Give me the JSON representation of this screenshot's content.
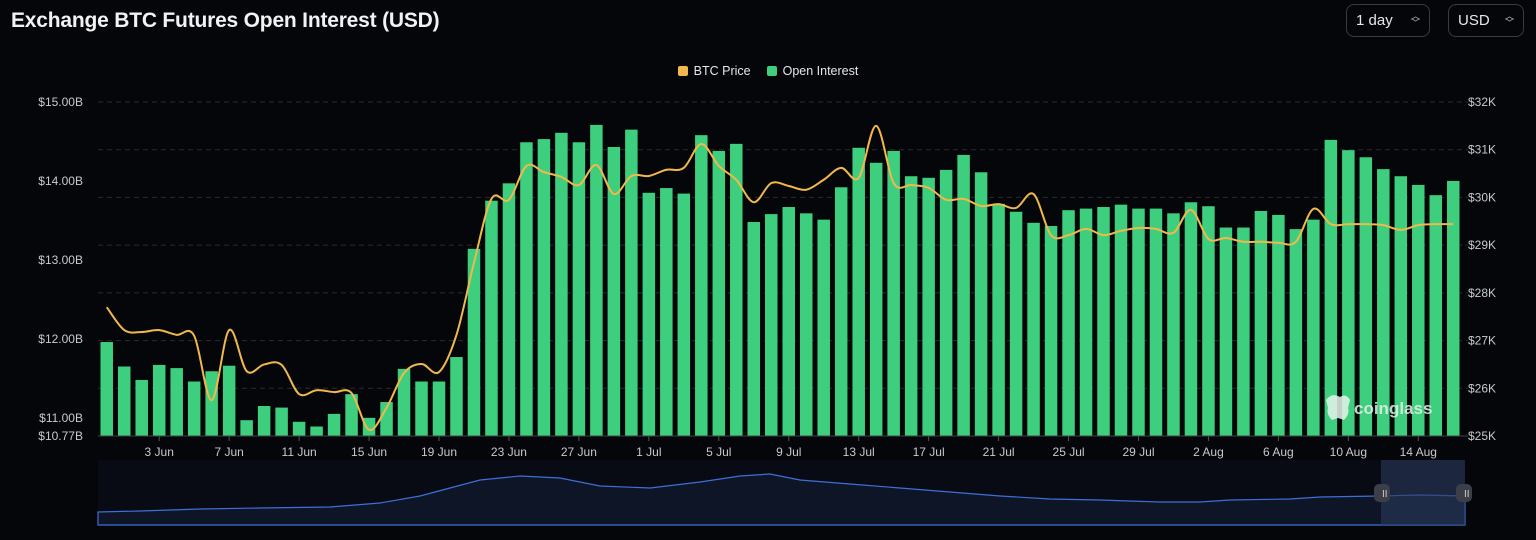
{
  "header": {
    "title": "Exchange BTC Futures Open Interest (USD)",
    "interval": "1 day",
    "currency": "USD"
  },
  "colors": {
    "bar": "#3ecf7e",
    "line": "#f2b84b",
    "background": "#05060a",
    "navigator_line": "#3d6fd8"
  },
  "watermark": "coinglass",
  "chart_data": {
    "type": "bar+line",
    "title": "Exchange BTC Futures Open Interest (USD)",
    "legend": {
      "position": "top-center",
      "entries": [
        "BTC Price",
        "Open Interest"
      ]
    },
    "x_tick_labels": [
      "3 Jun",
      "7 Jun",
      "11 Jun",
      "15 Jun",
      "19 Jun",
      "23 Jun",
      "27 Jun",
      "1 Jul",
      "5 Jul",
      "9 Jul",
      "13 Jul",
      "17 Jul",
      "21 Jul",
      "25 Jul",
      "29 Jul",
      "2 Aug",
      "6 Aug",
      "10 Aug",
      "14 Aug"
    ],
    "x_start": "31 May",
    "x_end": "16 Aug",
    "y_left": {
      "label": "Open Interest",
      "min": 10.77,
      "max": 15.0,
      "ticks": [
        "$15.00B",
        "$14.00B",
        "$13.00B",
        "$12.00B",
        "$11.00B",
        "$10.77B"
      ],
      "tick_values": [
        15,
        14,
        13,
        12,
        11,
        10.77
      ]
    },
    "y_right": {
      "label": "BTC Price",
      "min": 25000,
      "max": 32000,
      "ticks": [
        "$32K",
        "$31K",
        "$30K",
        "$29K",
        "$28K",
        "$27K",
        "$26K",
        "$25K"
      ],
      "tick_values": [
        32,
        31,
        30,
        29,
        28,
        27,
        26,
        25
      ]
    },
    "grid": true,
    "series": [
      {
        "name": "Open Interest",
        "type": "bar",
        "unit": "B USD",
        "values": [
          11.96,
          11.65,
          11.48,
          11.67,
          11.63,
          11.46,
          11.59,
          11.66,
          10.97,
          11.15,
          11.13,
          10.95,
          10.89,
          11.05,
          11.3,
          11.0,
          11.2,
          11.62,
          11.46,
          11.46,
          11.77,
          13.14,
          13.75,
          13.97,
          14.49,
          14.53,
          14.61,
          14.49,
          14.71,
          14.43,
          14.65,
          13.85,
          13.91,
          13.84,
          14.58,
          14.38,
          14.47,
          13.48,
          13.58,
          13.67,
          13.59,
          13.51,
          13.92,
          14.42,
          14.23,
          14.38,
          14.06,
          14.04,
          14.14,
          14.33,
          14.11,
          13.71,
          13.61,
          13.47,
          13.43,
          13.63,
          13.65,
          13.67,
          13.7,
          13.65,
          13.65,
          13.59,
          13.73,
          13.68,
          13.41,
          13.41,
          13.62,
          13.57,
          13.39,
          13.51,
          14.52,
          14.39,
          14.3,
          14.15,
          14.06,
          13.95,
          13.82,
          14.0
        ]
      },
      {
        "name": "BTC Price",
        "type": "line",
        "unit": "K USD",
        "values": [
          27.7,
          27.22,
          27.18,
          27.22,
          27.12,
          27.1,
          25.75,
          27.22,
          26.36,
          26.5,
          26.49,
          25.88,
          25.96,
          25.92,
          25.9,
          25.13,
          25.59,
          26.32,
          26.51,
          26.34,
          27.12,
          28.63,
          29.97,
          29.95,
          30.66,
          30.53,
          30.43,
          30.26,
          30.68,
          30.07,
          30.45,
          30.45,
          30.58,
          30.62,
          31.12,
          30.66,
          30.37,
          29.9,
          30.3,
          30.24,
          30.16,
          30.37,
          30.62,
          30.41,
          31.5,
          30.3,
          30.26,
          30.2,
          29.95,
          29.97,
          29.82,
          29.86,
          29.78,
          30.07,
          29.21,
          29.21,
          29.34,
          29.21,
          29.3,
          29.36,
          29.34,
          29.26,
          29.74,
          29.13,
          29.15,
          29.07,
          29.07,
          29.05,
          29.07,
          29.76,
          29.44,
          29.44,
          29.44,
          29.42,
          29.32,
          29.42,
          29.44,
          29.44
        ]
      }
    ]
  }
}
